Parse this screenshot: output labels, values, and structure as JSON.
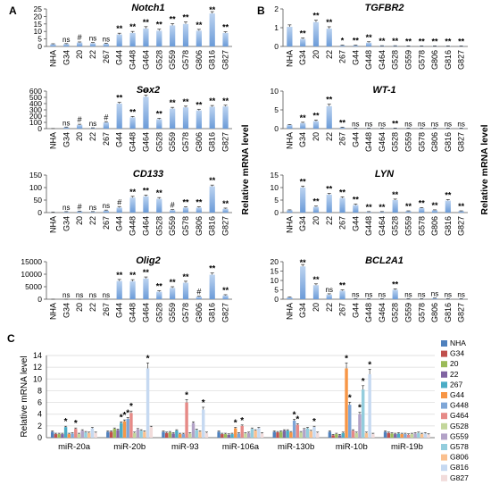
{
  "figure": {
    "panel_labels": [
      "A",
      "B",
      "C"
    ],
    "shared_ylabel": "Relative mRNA level"
  },
  "chart_data": [
    {
      "panel": "A",
      "type": "bar",
      "title": "Notch1",
      "categories": [
        "NHA",
        "G34",
        "20",
        "22",
        "267",
        "G44",
        "G448",
        "G464",
        "G528",
        "G559",
        "G578",
        "G806",
        "G816",
        "G827"
      ],
      "values": [
        1.5,
        1.6,
        2.6,
        2.2,
        1.8,
        8.0,
        9.0,
        12.0,
        10.5,
        14.0,
        15.0,
        10.5,
        22.0,
        9.0
      ],
      "errors": [
        0.3,
        0.3,
        0.4,
        0.4,
        0.3,
        0.8,
        1.0,
        1.2,
        1.0,
        1.2,
        1.3,
        0.9,
        1.2,
        0.8
      ],
      "annotations": [
        "",
        "ns",
        "#",
        "ns",
        "ns",
        "**",
        "**",
        "**",
        "**",
        "**",
        "**",
        "**",
        "**",
        "**"
      ],
      "ylim": [
        0,
        25
      ],
      "yticks": [
        0,
        5,
        10,
        15,
        20,
        25
      ]
    },
    {
      "panel": "A",
      "type": "bar",
      "title": "Sox2",
      "categories": [
        "NHA",
        "G34",
        "20",
        "22",
        "267",
        "G44",
        "G448",
        "G464",
        "G528",
        "G559",
        "G578",
        "G806",
        "G816",
        "G827"
      ],
      "values": [
        1,
        20,
        60,
        10,
        100,
        400,
        180,
        510,
        150,
        320,
        340,
        290,
        350,
        355
      ],
      "errors": [
        1,
        5,
        10,
        3,
        10,
        20,
        15,
        25,
        15,
        20,
        20,
        20,
        20,
        20
      ],
      "annotations": [
        "",
        "ns",
        "#",
        "ns",
        "#",
        "**",
        "**",
        "**",
        "**",
        "**",
        "**",
        "**",
        "**",
        "**"
      ],
      "ylim": [
        0,
        600
      ],
      "yticks": [
        0,
        100,
        200,
        300,
        400,
        500,
        600
      ]
    },
    {
      "panel": "A",
      "type": "bar",
      "title": "CD133",
      "categories": [
        "NHA",
        "G34",
        "20",
        "22",
        "267",
        "G44",
        "G448",
        "G464",
        "G528",
        "G559",
        "G578",
        "G806",
        "G816",
        "G827"
      ],
      "values": [
        1,
        3,
        5,
        3,
        8,
        20,
        60,
        65,
        55,
        10,
        20,
        20,
        105,
        15
      ],
      "errors": [
        1,
        1,
        1,
        1,
        2,
        3,
        5,
        5,
        5,
        2,
        3,
        3,
        5,
        3
      ],
      "annotations": [
        "",
        "ns",
        "#",
        "ns",
        "ns",
        "#",
        "**",
        "**",
        "**",
        "#",
        "**",
        "**",
        "**",
        "**"
      ],
      "ylim": [
        0,
        150
      ],
      "yticks": [
        0,
        50,
        100,
        150
      ]
    },
    {
      "panel": "A",
      "type": "bar",
      "title": "Olig2",
      "categories": [
        "NHA",
        "G34",
        "20",
        "22",
        "267",
        "G44",
        "G448",
        "G464",
        "G528",
        "G559",
        "G578",
        "G806",
        "G816",
        "G827"
      ],
      "values": [
        1,
        10,
        10,
        10,
        10,
        7300,
        7200,
        8300,
        3000,
        4500,
        6600,
        1000,
        9800,
        1500
      ],
      "errors": [
        1,
        5,
        5,
        5,
        5,
        600,
        600,
        600,
        400,
        500,
        600,
        200,
        700,
        300
      ],
      "annotations": [
        "",
        "ns",
        "ns",
        "ns",
        "ns",
        "**",
        "**",
        "**",
        "**",
        "**",
        "**",
        "#",
        "**",
        "**"
      ],
      "ylim": [
        0,
        15000
      ],
      "yticks": [
        0,
        5000,
        10000,
        15000
      ]
    },
    {
      "panel": "B",
      "type": "bar",
      "title": "TGFBR2",
      "categories": [
        "NHA",
        "G34",
        "20",
        "22",
        "267",
        "G44",
        "G448",
        "G464",
        "G528",
        "G559",
        "G578",
        "G806",
        "G816",
        "G827"
      ],
      "values": [
        1.05,
        0.4,
        1.3,
        0.95,
        0.05,
        0.05,
        0.2,
        0.03,
        0.03,
        0.02,
        0.02,
        0.02,
        0.02,
        0.02
      ],
      "errors": [
        0.1,
        0.05,
        0.1,
        0.1,
        0.02,
        0.02,
        0.05,
        0.01,
        0.01,
        0.01,
        0.01,
        0.01,
        0.01,
        0.01
      ],
      "annotations": [
        "",
        "**",
        "**",
        "**",
        "*",
        "**",
        "**",
        "**",
        "**",
        "**",
        "**",
        "**",
        "**",
        "**"
      ],
      "ylim": [
        0,
        2
      ],
      "yticks": [
        0,
        1,
        2
      ]
    },
    {
      "panel": "B",
      "type": "bar",
      "title": "WT-1",
      "categories": [
        "NHA",
        "G34",
        "20",
        "22",
        "267",
        "G44",
        "G448",
        "G464",
        "G528",
        "G559",
        "G578",
        "G806",
        "G816",
        "G827"
      ],
      "values": [
        1,
        1.5,
        2.0,
        6.0,
        0.3,
        0.1,
        0.1,
        0.1,
        0.1,
        0.1,
        0.1,
        0.1,
        0.1,
        0.1
      ],
      "errors": [
        0.1,
        0.2,
        0.3,
        0.5,
        0.1,
        0.05,
        0.05,
        0.05,
        0.05,
        0.05,
        0.05,
        0.05,
        0.05,
        0.05
      ],
      "annotations": [
        "",
        "**",
        "**",
        "**",
        "**",
        "ns",
        "ns",
        "ns",
        "**",
        "ns",
        "ns",
        "ns",
        "ns",
        "ns"
      ],
      "ylim": [
        0,
        10
      ],
      "yticks": [
        0,
        5,
        10
      ]
    },
    {
      "panel": "B",
      "type": "bar",
      "title": "LYN",
      "categories": [
        "NHA",
        "G34",
        "20",
        "22",
        "267",
        "G44",
        "G448",
        "G464",
        "G528",
        "G559",
        "G578",
        "G806",
        "G816",
        "G827"
      ],
      "values": [
        1,
        10.0,
        2.3,
        7.2,
        5.8,
        3.0,
        0.3,
        0.3,
        5.0,
        0.6,
        1.8,
        1.0,
        4.8,
        0.6
      ],
      "errors": [
        0.1,
        0.6,
        0.3,
        0.5,
        0.5,
        0.4,
        0.1,
        0.1,
        0.4,
        0.1,
        0.2,
        0.1,
        0.4,
        0.1
      ],
      "annotations": [
        "",
        "**",
        "**",
        "**",
        "**",
        "**",
        "**",
        "**",
        "**",
        "**",
        "**",
        "**",
        "**",
        "**"
      ],
      "ylim": [
        0,
        15
      ],
      "yticks": [
        0,
        5,
        10,
        15
      ]
    },
    {
      "panel": "B",
      "type": "bar",
      "title": "BCL2A1",
      "categories": [
        "NHA",
        "G34",
        "20",
        "22",
        "267",
        "G44",
        "G448",
        "G464",
        "G528",
        "G559",
        "G578",
        "G806",
        "G816",
        "G827"
      ],
      "values": [
        1,
        17.5,
        7.5,
        2.5,
        4.5,
        0.2,
        0.2,
        0.2,
        5.0,
        0.2,
        0.2,
        0.5,
        0.2,
        0.2
      ],
      "errors": [
        0.2,
        1.0,
        0.7,
        0.4,
        0.5,
        0.1,
        0.1,
        0.1,
        0.5,
        0.1,
        0.1,
        0.1,
        0.1,
        0.1
      ],
      "annotations": [
        "",
        "**",
        "**",
        "ns",
        "**",
        "ns",
        "ns",
        "ns",
        "**",
        "ns",
        "ns",
        "ns",
        "ns",
        "ns"
      ],
      "ylim": [
        0,
        20
      ],
      "yticks": [
        0,
        5,
        10,
        15,
        20
      ]
    },
    {
      "panel": "C",
      "type": "bar",
      "ylabel": "Relative mRNA level",
      "ylim": [
        0,
        14
      ],
      "yticks": [
        0,
        2,
        4,
        6,
        8,
        10,
        12,
        14
      ],
      "categories": [
        "miR-20a",
        "miR-20b",
        "miR-93",
        "miR-106a",
        "miR-130b",
        "miR-10b",
        "miR-19b"
      ],
      "legend_position": "right",
      "series": [
        {
          "name": "NHA",
          "color": "#4f81bd",
          "values": [
            1.0,
            1.0,
            1.0,
            1.0,
            1.0,
            1.0,
            1.0
          ],
          "stars": [
            false,
            false,
            false,
            false,
            false,
            false,
            false
          ]
        },
        {
          "name": "G34",
          "color": "#c0504d",
          "values": [
            0.6,
            1.0,
            0.8,
            0.6,
            0.9,
            0.4,
            0.8
          ],
          "stars": [
            false,
            false,
            false,
            false,
            false,
            false,
            false
          ]
        },
        {
          "name": "20",
          "color": "#9bbb59",
          "values": [
            0.6,
            1.5,
            0.9,
            0.6,
            1.0,
            0.6,
            0.7
          ],
          "stars": [
            false,
            false,
            false,
            false,
            false,
            false,
            false
          ]
        },
        {
          "name": "22",
          "color": "#8064a2",
          "values": [
            0.6,
            1.3,
            0.7,
            0.5,
            1.2,
            0.4,
            0.6
          ],
          "stars": [
            false,
            false,
            false,
            false,
            false,
            false,
            false
          ]
        },
        {
          "name": "267",
          "color": "#4bacc6",
          "values": [
            1.8,
            2.5,
            1.2,
            0.6,
            1.2,
            0.8,
            0.7
          ],
          "stars": [
            true,
            true,
            false,
            false,
            false,
            false,
            false
          ]
        },
        {
          "name": "G44",
          "color": "#f79646",
          "values": [
            0.6,
            2.8,
            0.6,
            1.6,
            0.9,
            11.8,
            0.6
          ],
          "stars": [
            false,
            true,
            false,
            true,
            false,
            true,
            false
          ]
        },
        {
          "name": "G448",
          "color": "#7ea6d7",
          "values": [
            0.7,
            3.2,
            0.6,
            0.7,
            2.9,
            5.6,
            0.6
          ],
          "stars": [
            false,
            true,
            false,
            false,
            true,
            true,
            false
          ]
        },
        {
          "name": "G464",
          "color": "#e68a87",
          "values": [
            1.5,
            4.2,
            6.0,
            2.0,
            2.2,
            1.2,
            0.5
          ],
          "stars": [
            true,
            true,
            true,
            true,
            true,
            false,
            false
          ]
        },
        {
          "name": "G528",
          "color": "#c3d69b",
          "values": [
            0.6,
            0.8,
            0.7,
            0.7,
            0.9,
            0.8,
            0.6
          ],
          "stars": [
            false,
            false,
            false,
            false,
            false,
            false,
            false
          ]
        },
        {
          "name": "G559",
          "color": "#b2a2c7",
          "values": [
            1.2,
            1.4,
            2.5,
            0.8,
            1.4,
            4.0,
            0.7
          ],
          "stars": [
            false,
            false,
            false,
            false,
            false,
            true,
            false
          ]
        },
        {
          "name": "G578",
          "color": "#93cddd",
          "values": [
            0.9,
            1.2,
            1.3,
            1.5,
            1.6,
            8.2,
            0.8
          ],
          "stars": [
            false,
            false,
            false,
            false,
            false,
            true,
            false
          ]
        },
        {
          "name": "G806",
          "color": "#fac08f",
          "values": [
            0.8,
            1.0,
            1.0,
            1.2,
            1.1,
            0.8,
            0.6
          ],
          "stars": [
            false,
            false,
            false,
            false,
            false,
            false,
            false
          ]
        },
        {
          "name": "G816",
          "color": "#c6d9f1",
          "values": [
            1.6,
            11.8,
            4.8,
            1.6,
            1.8,
            10.8,
            0.7
          ],
          "stars": [
            false,
            true,
            true,
            false,
            true,
            true,
            false
          ]
        },
        {
          "name": "G827",
          "color": "#f2dcdb",
          "values": [
            0.8,
            1.8,
            0.8,
            0.7,
            0.8,
            0.6,
            0.5
          ],
          "stars": [
            false,
            false,
            false,
            false,
            false,
            false,
            false
          ]
        }
      ]
    }
  ]
}
